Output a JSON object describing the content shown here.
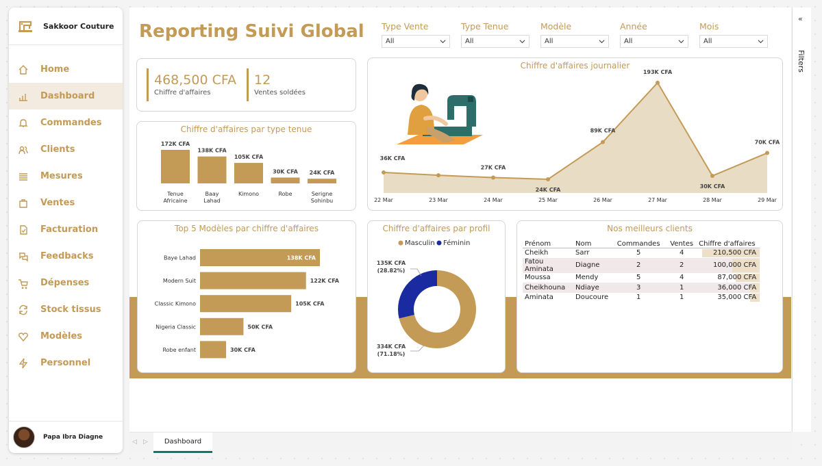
{
  "app": {
    "brand": "Sakkoor Couture",
    "user": "Papa Ibra Diagne"
  },
  "nav": [
    {
      "label": "Home",
      "icon": "home-icon",
      "active": false
    },
    {
      "label": "Dashboard",
      "icon": "chart-icon",
      "active": true
    },
    {
      "label": "Commandes",
      "icon": "bell-icon",
      "active": false
    },
    {
      "label": "Clients",
      "icon": "users-icon",
      "active": false
    },
    {
      "label": "Mesures",
      "icon": "list-icon",
      "active": false
    },
    {
      "label": "Ventes",
      "icon": "bag-icon",
      "active": false
    },
    {
      "label": "Facturation",
      "icon": "invoice-icon",
      "active": false
    },
    {
      "label": "Feedbacks",
      "icon": "feedback-icon",
      "active": false
    },
    {
      "label": "Dépenses",
      "icon": "cart-icon",
      "active": false
    },
    {
      "label": "Stock tissus",
      "icon": "refresh-icon",
      "active": false
    },
    {
      "label": "Modèles",
      "icon": "heart-icon",
      "active": false
    },
    {
      "label": "Personnel",
      "icon": "bolt-icon",
      "active": false
    }
  ],
  "page": {
    "title": "Reporting Suivi Global"
  },
  "slicers": [
    {
      "label": "Type Vente",
      "value": "All"
    },
    {
      "label": "Type Tenue",
      "value": "All"
    },
    {
      "label": "Modèle",
      "value": "All"
    },
    {
      "label": "Année",
      "value": "All"
    },
    {
      "label": "Mois",
      "value": "All"
    }
  ],
  "kpis": [
    {
      "value": "468,500 CFA",
      "label": "Chiffre d'affaires"
    },
    {
      "value": "12",
      "label": "Ventes soldées"
    }
  ],
  "colors": {
    "accent": "#c39a56",
    "feminin": "#1a2aa0",
    "area_fill": "#e9dcc4",
    "tab_underline": "#117865"
  },
  "table": {
    "title": "Nos meilleurs clients",
    "columns": [
      "Prénom",
      "Nom",
      "Commandes",
      "Ventes",
      "Chiffre d'affaires"
    ],
    "rows": [
      {
        "prenom": "Cheikh",
        "nom": "Sarr",
        "commandes": "5",
        "ventes": "4",
        "ca": "210,500 CFA",
        "ca_value": 210500
      },
      {
        "prenom": "Fatou Aminata",
        "nom": "Diagne",
        "commandes": "2",
        "ventes": "2",
        "ca": "100,000 CFA",
        "ca_value": 100000
      },
      {
        "prenom": "Moussa",
        "nom": "Mendy",
        "commandes": "5",
        "ventes": "4",
        "ca": "87,000 CFA",
        "ca_value": 87000
      },
      {
        "prenom": "Cheikhouna",
        "nom": "Ndiaye",
        "commandes": "3",
        "ventes": "1",
        "ca": "36,000 CFA",
        "ca_value": 36000
      },
      {
        "prenom": "Aminata",
        "nom": "Doucoure",
        "commandes": "1",
        "ventes": "1",
        "ca": "35,000 CFA",
        "ca_value": 35000
      }
    ]
  },
  "filters_pane": {
    "collapse": "«",
    "label": "Filters"
  },
  "tabs": {
    "prev": "◁",
    "next": "▷",
    "active": "Dashboard"
  },
  "chart_data": [
    {
      "id": "type_tenue",
      "type": "bar",
      "title": "Chiffre d'affaires par type tenue",
      "categories": [
        "Tenue\nAfricaine",
        "Baay\nLahad",
        "Kimono",
        "Robe",
        "Serigne\nSohinbu"
      ],
      "values": [
        172000,
        138000,
        105000,
        30000,
        24000
      ],
      "labels": [
        "172K CFA",
        "138K CFA",
        "105K CFA",
        "30K CFA",
        "24K CFA"
      ]
    },
    {
      "id": "journalier",
      "type": "area",
      "title": "Chiffre d'affaires journalier",
      "x": [
        "22 Mar",
        "23 Mar",
        "24 Mar",
        "25 Mar",
        "26 Mar",
        "27 Mar",
        "28 Mar",
        "29 Mar"
      ],
      "values": [
        36000,
        31000,
        27000,
        24000,
        89000,
        193000,
        30000,
        70000
      ],
      "labels": [
        "36K CFA",
        null,
        "27K CFA",
        "24K CFA",
        "89K CFA",
        "193K CFA",
        "30K CFA",
        "70K CFA"
      ],
      "ylim": [
        0,
        200000
      ]
    },
    {
      "id": "top_modeles",
      "type": "bar",
      "orientation": "horizontal",
      "title": "Top 5 Modèles par chiffre d'affaires",
      "categories": [
        "Baye Lahad",
        "Modern Suit",
        "Classic Kimono",
        "Nigeria Classic",
        "Robe enfant"
      ],
      "values": [
        138000,
        122000,
        105000,
        50000,
        30000
      ],
      "labels": [
        "138K CFA",
        "122K CFA",
        "105K CFA",
        "50K CFA",
        "30K CFA"
      ]
    },
    {
      "id": "profil",
      "type": "pie",
      "title": "Chiffre d'affaires par profil",
      "legend": [
        "Masculin",
        "Féminin"
      ],
      "values": [
        334000,
        135000
      ],
      "labels": [
        "334K CFA\n(71.18%)",
        "135K CFA\n(28.82%)"
      ]
    }
  ]
}
